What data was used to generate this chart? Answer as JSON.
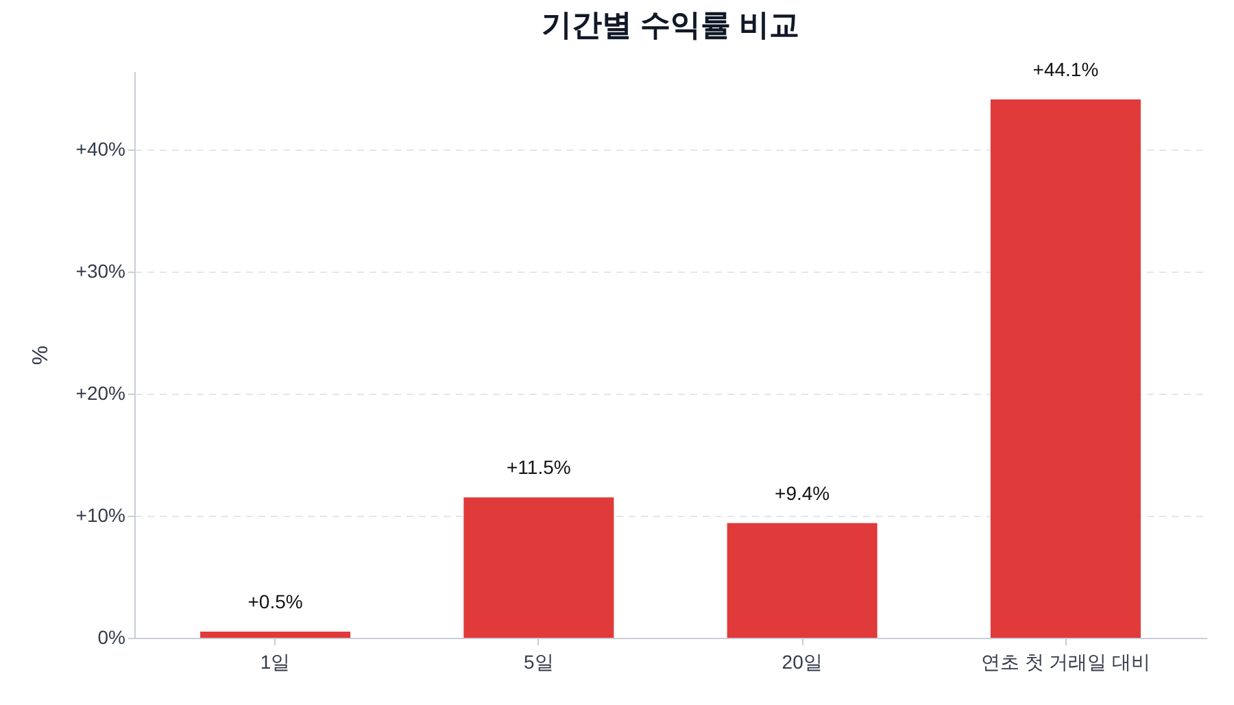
{
  "chart_data": {
    "type": "bar",
    "title": "기간별 수익률 비교",
    "ylabel": "%",
    "categories": [
      "1일",
      "5일",
      "20일",
      "연초 첫 거래일 대비"
    ],
    "values": [
      0.5,
      11.5,
      9.4,
      44.1
    ],
    "value_labels": [
      "+0.5%",
      "+11.5%",
      "+9.4%",
      "+44.1%"
    ],
    "color": "#e03a3a",
    "ylim": [
      0,
      46.4
    ],
    "yticks": [
      {
        "value": 0,
        "label": "0%"
      },
      {
        "value": 10,
        "label": "+10%"
      },
      {
        "value": 20,
        "label": "+20%"
      },
      {
        "value": 30,
        "label": "+30%"
      },
      {
        "value": 40,
        "label": "+40%"
      }
    ],
    "grid": "y"
  }
}
